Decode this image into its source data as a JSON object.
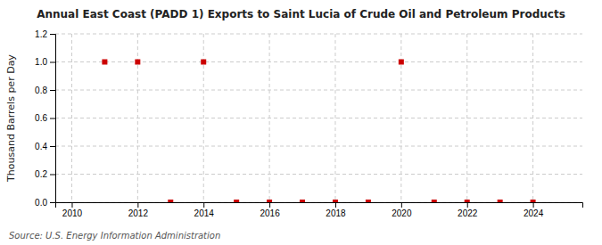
{
  "chart_data": {
    "type": "scatter",
    "title": "Annual East Coast (PADD 1) Exports to Saint Lucia of Crude Oil and Petroleum Products",
    "ylabel": "Thousand Barrels per Day",
    "source": "Source: U.S. Energy Information Administration",
    "x": [
      2011,
      2012,
      2013,
      2014,
      2015,
      2016,
      2017,
      2018,
      2019,
      2020,
      2021,
      2022,
      2023,
      2024
    ],
    "values": [
      1.0,
      1.0,
      0.0,
      1.0,
      0.0,
      0.0,
      0.0,
      0.0,
      0.0,
      1.0,
      0.0,
      0.0,
      0.0,
      0.0
    ],
    "color": "#cc0000",
    "marker": "square",
    "xlim": [
      2009.5,
      2025.5
    ],
    "xticks": [
      2010,
      2012,
      2014,
      2016,
      2018,
      2020,
      2022,
      2024
    ],
    "ylim": [
      0.0,
      1.2
    ],
    "yticks": [
      {
        "value": 0.0,
        "label": "0.0"
      },
      0.2,
      0.4,
      0.6,
      0.8,
      {
        "value": 1.0,
        "label": "1.0"
      },
      1.2
    ],
    "grid": true
  }
}
